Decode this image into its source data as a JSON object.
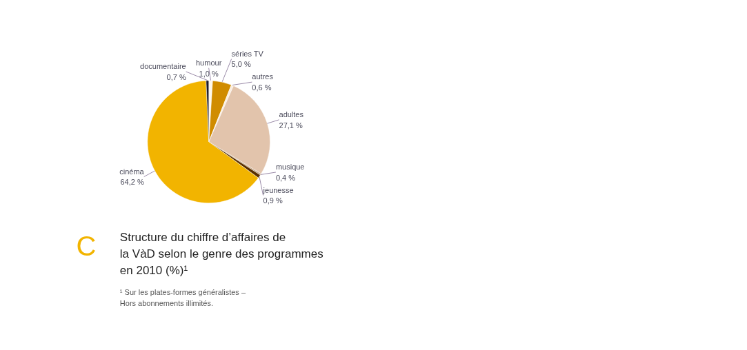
{
  "chart_data": {
    "type": "pie",
    "title": "Structure du chiffre d’affaires de la VàD selon le genre des programmes en 2010 (%)¹",
    "categories": [
      "humour",
      "séries TV",
      "autres",
      "adultes",
      "musique",
      "jeunesse",
      "cinéma",
      "documentaire"
    ],
    "values": [
      1.0,
      5.0,
      0.6,
      27.1,
      0.4,
      0.9,
      64.2,
      0.7
    ],
    "colors": [
      "#fff8ec",
      "#d08c00",
      "#fbeee0",
      "#e2c4ac",
      "#c8a888",
      "#5a3000",
      "#f2b400",
      "#1c1c2c"
    ],
    "value_labels": [
      "1,0 %",
      "5,0 %",
      "0,6 %",
      "27,1 %",
      "0,4 %",
      "0,9 %",
      "64,2 %",
      "0,7 %"
    ],
    "annotations": [
      "C",
      "¹ Sur les plates-formes généralistes – Hors abonnements illimités."
    ]
  }
}
